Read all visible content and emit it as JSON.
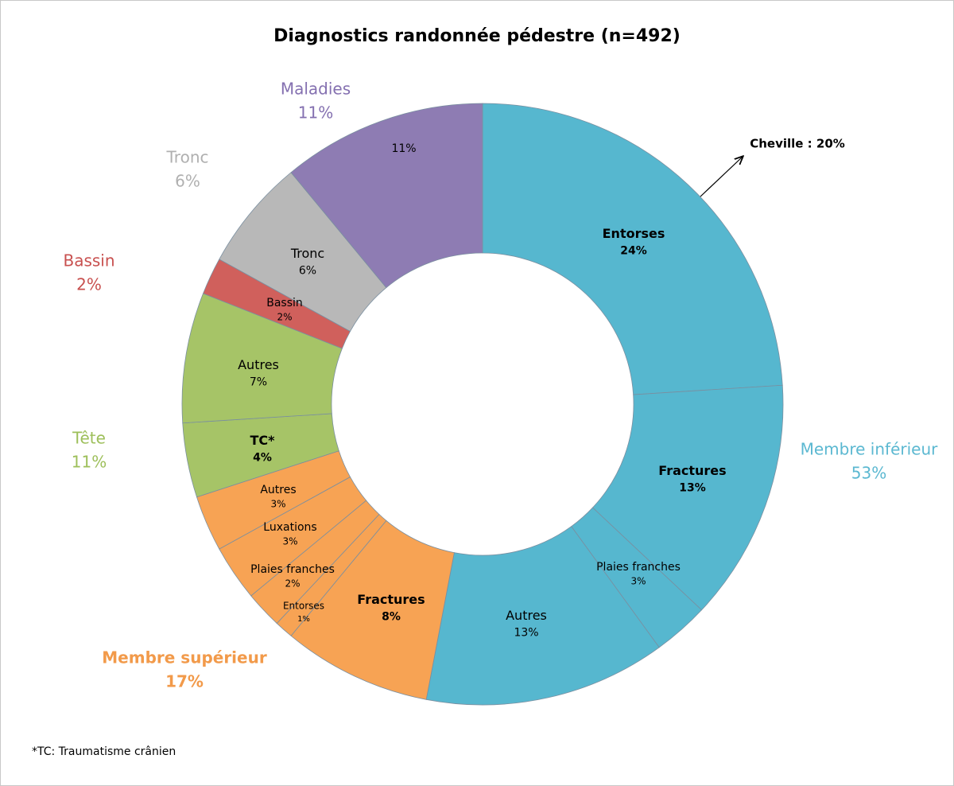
{
  "chart_data": {
    "type": "donut",
    "title": "Diagnostics randonnée pédestre (n=492)",
    "groups": [
      {
        "name": "Membre inférieur",
        "value": 53,
        "value_label": "53%",
        "color": "#56b7cf",
        "label_color": "#5bb8d1",
        "segments": [
          {
            "label": "Entorses",
            "value": 24,
            "value_label": "24%",
            "bold": true
          },
          {
            "label": "Fractures",
            "value": 13,
            "value_label": "13%",
            "bold": true
          },
          {
            "label": "Plaies franches",
            "value": 3,
            "value_label": "3%"
          },
          {
            "label": "Autres",
            "value": 13,
            "value_label": "13%"
          }
        ]
      },
      {
        "name": "Membre supérieur",
        "value": 17,
        "value_label": "17%",
        "color": "#f7a354",
        "label_color": "#f29a4a",
        "segments": [
          {
            "label": "Fractures",
            "value": 8,
            "value_label": "8%",
            "bold": true
          },
          {
            "label": "Entorses",
            "value": 1,
            "value_label": "1%"
          },
          {
            "label": "Plaies franches",
            "value": 2,
            "value_label": "2%"
          },
          {
            "label": "Luxations",
            "value": 3,
            "value_label": "3%"
          },
          {
            "label": "Autres",
            "value": 3,
            "value_label": "3%"
          }
        ]
      },
      {
        "name": "Tête",
        "value": 11,
        "value_label": "11%",
        "color": "#a6c467",
        "label_color": "#9dbf5a",
        "segments": [
          {
            "label": "TC*",
            "value": 4,
            "value_label": "4%",
            "bold": true
          },
          {
            "label": "Autres",
            "value": 7,
            "value_label": "7%"
          }
        ]
      },
      {
        "name": "Bassin",
        "value": 2,
        "value_label": "2%",
        "color": "#d0605c",
        "label_color": "#c8504f",
        "segments": [
          {
            "label": "Bassin",
            "value": 2,
            "value_label": "2%"
          }
        ]
      },
      {
        "name": "Tronc",
        "value": 6,
        "value_label": "6%",
        "color": "#b8b8b8",
        "label_color": "#b0b0b0",
        "segments": [
          {
            "label": "Tronc",
            "value": 6,
            "value_label": "6%"
          }
        ]
      },
      {
        "name": "Maladies",
        "value": 11,
        "value_label": "11%",
        "color": "#8e7cb3",
        "label_color": "#8470b0",
        "segments": [
          {
            "value": 11,
            "value_label": "11%"
          }
        ]
      }
    ],
    "annotation": "Cheville : 20%",
    "footnote": "*TC: Traumatisme crânien"
  }
}
